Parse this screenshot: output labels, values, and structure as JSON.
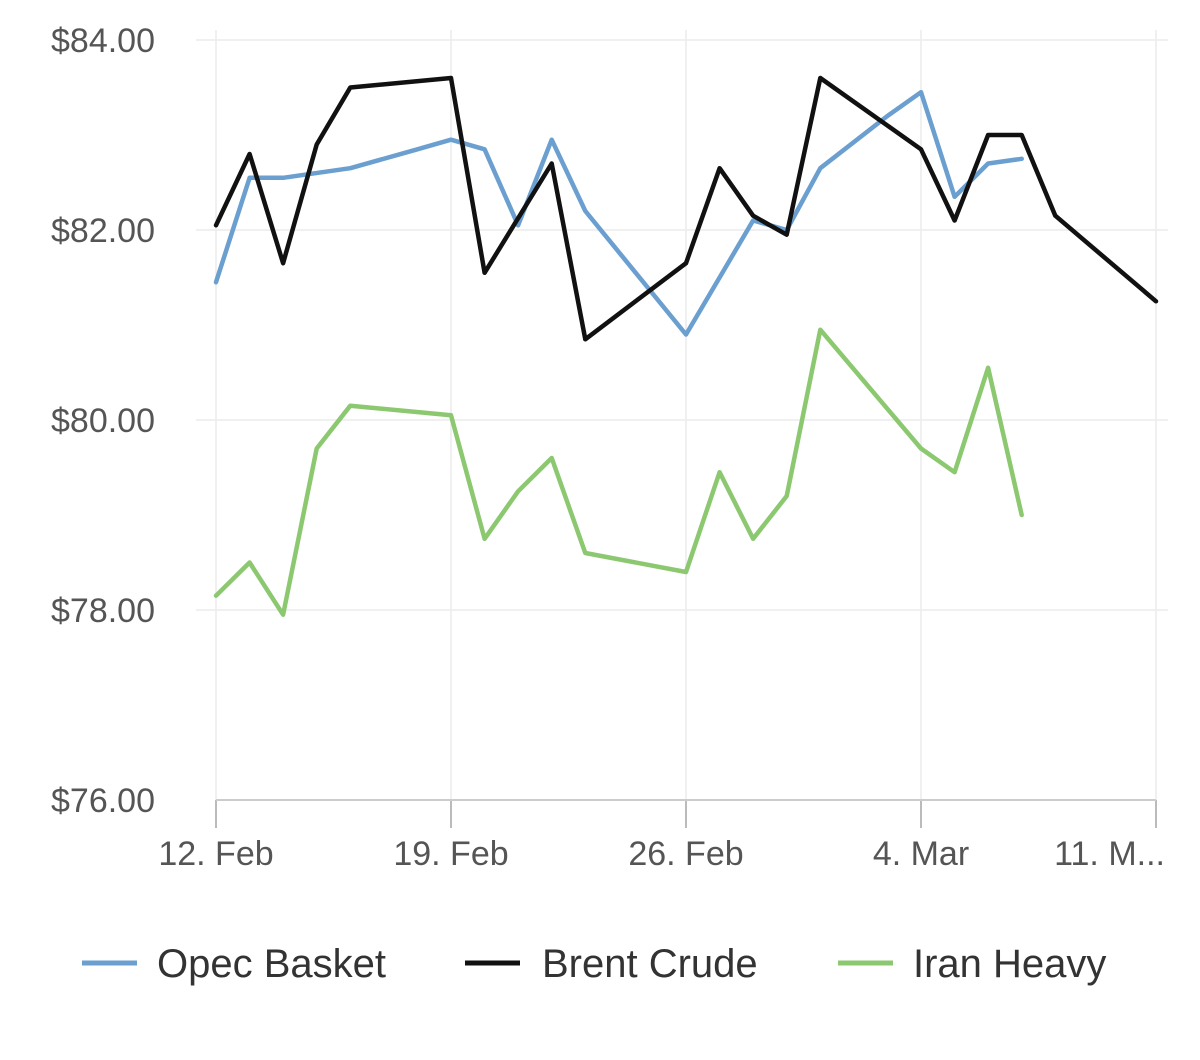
{
  "chart_data": {
    "type": "line",
    "x_ticks": [
      {
        "label": "12. Feb",
        "day": 12
      },
      {
        "label": "19. Feb",
        "day": 19
      },
      {
        "label": "26. Feb",
        "day": 26
      },
      {
        "label": "4. Mar",
        "day": 33
      },
      {
        "label": "11. M...",
        "day": 40
      }
    ],
    "y_ticks": [
      "$76.00",
      "$78.00",
      "$80.00",
      "$82.00",
      "$84.00"
    ],
    "y_tick_values": [
      76,
      78,
      80,
      82,
      84
    ],
    "ylim": [
      76,
      84
    ],
    "grid": true,
    "legend_position": "bottom",
    "series": [
      {
        "name": "Opec Basket",
        "color": "#6a9fd0",
        "points": [
          [
            12,
            81.45
          ],
          [
            13,
            82.55
          ],
          [
            14,
            82.55
          ],
          [
            16,
            82.65
          ],
          [
            18,
            82.85
          ],
          [
            19,
            82.95
          ],
          [
            20,
            82.85
          ],
          [
            21,
            82.05
          ],
          [
            22,
            82.95
          ],
          [
            23,
            82.2
          ],
          [
            26,
            80.9
          ],
          [
            27,
            81.5
          ],
          [
            28,
            82.1
          ],
          [
            29,
            82.0
          ],
          [
            30,
            82.65
          ],
          [
            32,
            83.2
          ],
          [
            33,
            83.45
          ],
          [
            34,
            82.35
          ],
          [
            35,
            82.7
          ],
          [
            36,
            82.75
          ]
        ]
      },
      {
        "name": "Brent Crude",
        "color": "#111111",
        "points": [
          [
            12,
            82.05
          ],
          [
            13,
            82.8
          ],
          [
            14,
            81.65
          ],
          [
            15,
            82.9
          ],
          [
            16,
            83.5
          ],
          [
            19,
            83.6
          ],
          [
            20,
            81.55
          ],
          [
            22,
            82.7
          ],
          [
            23,
            80.85
          ],
          [
            26,
            81.65
          ],
          [
            27,
            82.65
          ],
          [
            28,
            82.15
          ],
          [
            29,
            81.95
          ],
          [
            30,
            83.6
          ],
          [
            33,
            82.85
          ],
          [
            34,
            82.1
          ],
          [
            35,
            83.0
          ],
          [
            36,
            83.0
          ],
          [
            37,
            82.15
          ],
          [
            40,
            81.25
          ]
        ]
      },
      {
        "name": "Iran Heavy",
        "color": "#8cc870",
        "points": [
          [
            12,
            78.15
          ],
          [
            13,
            78.5
          ],
          [
            14,
            77.95
          ],
          [
            15,
            79.7
          ],
          [
            16,
            80.15
          ],
          [
            19,
            80.05
          ],
          [
            20,
            78.75
          ],
          [
            21,
            79.25
          ],
          [
            22,
            79.6
          ],
          [
            23,
            78.6
          ],
          [
            26,
            78.4
          ],
          [
            27,
            79.45
          ],
          [
            28,
            78.75
          ],
          [
            29,
            79.2
          ],
          [
            30,
            80.95
          ],
          [
            33,
            79.7
          ],
          [
            34,
            79.45
          ],
          [
            35,
            80.55
          ],
          [
            36,
            79.0
          ]
        ]
      }
    ]
  }
}
